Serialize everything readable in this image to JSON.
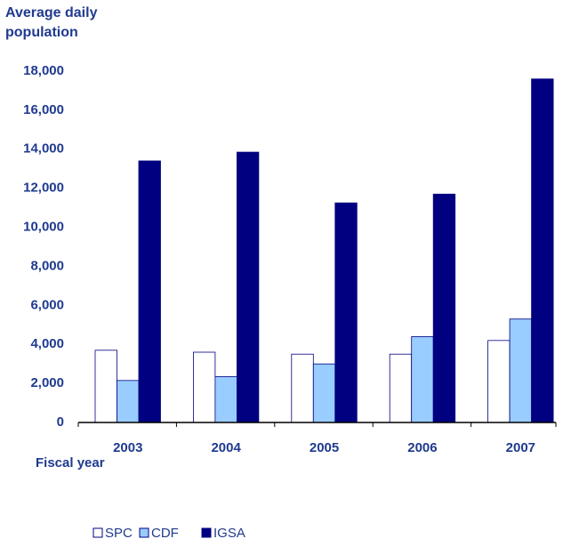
{
  "chart_data": {
    "type": "bar",
    "title": "Average daily population",
    "x_label": "Fiscal year",
    "categories": [
      "2003",
      "2004",
      "2005",
      "2006",
      "2007"
    ],
    "series": [
      {
        "name": "SPC",
        "color": "#ffffff",
        "values": [
          3700,
          3600,
          3500,
          3500,
          4200
        ]
      },
      {
        "name": "CDF",
        "color": "#99ccff",
        "values": [
          2150,
          2350,
          3000,
          4400,
          5300
        ]
      },
      {
        "name": "IGSA",
        "color": "#000080",
        "values": [
          13400,
          13850,
          11250,
          11700,
          17600
        ]
      }
    ],
    "ylim": [
      0,
      18000
    ],
    "yticks": [
      0,
      {
        "value": 2000,
        "label": "2,000"
      },
      {
        "value": 4000,
        "label": "4,000"
      },
      {
        "value": 6000,
        "label": "6,000"
      },
      {
        "value": 8000,
        "label": "8,000"
      },
      {
        "value": 10000,
        "label": "10,000"
      },
      {
        "value": 12000,
        "label": "12,000"
      },
      {
        "value": 14000,
        "label": "14,000"
      },
      {
        "value": 16000,
        "label": "16,000"
      },
      {
        "value": 18000,
        "label": "18,000"
      }
    ],
    "grid": false,
    "legend": "bottom"
  }
}
